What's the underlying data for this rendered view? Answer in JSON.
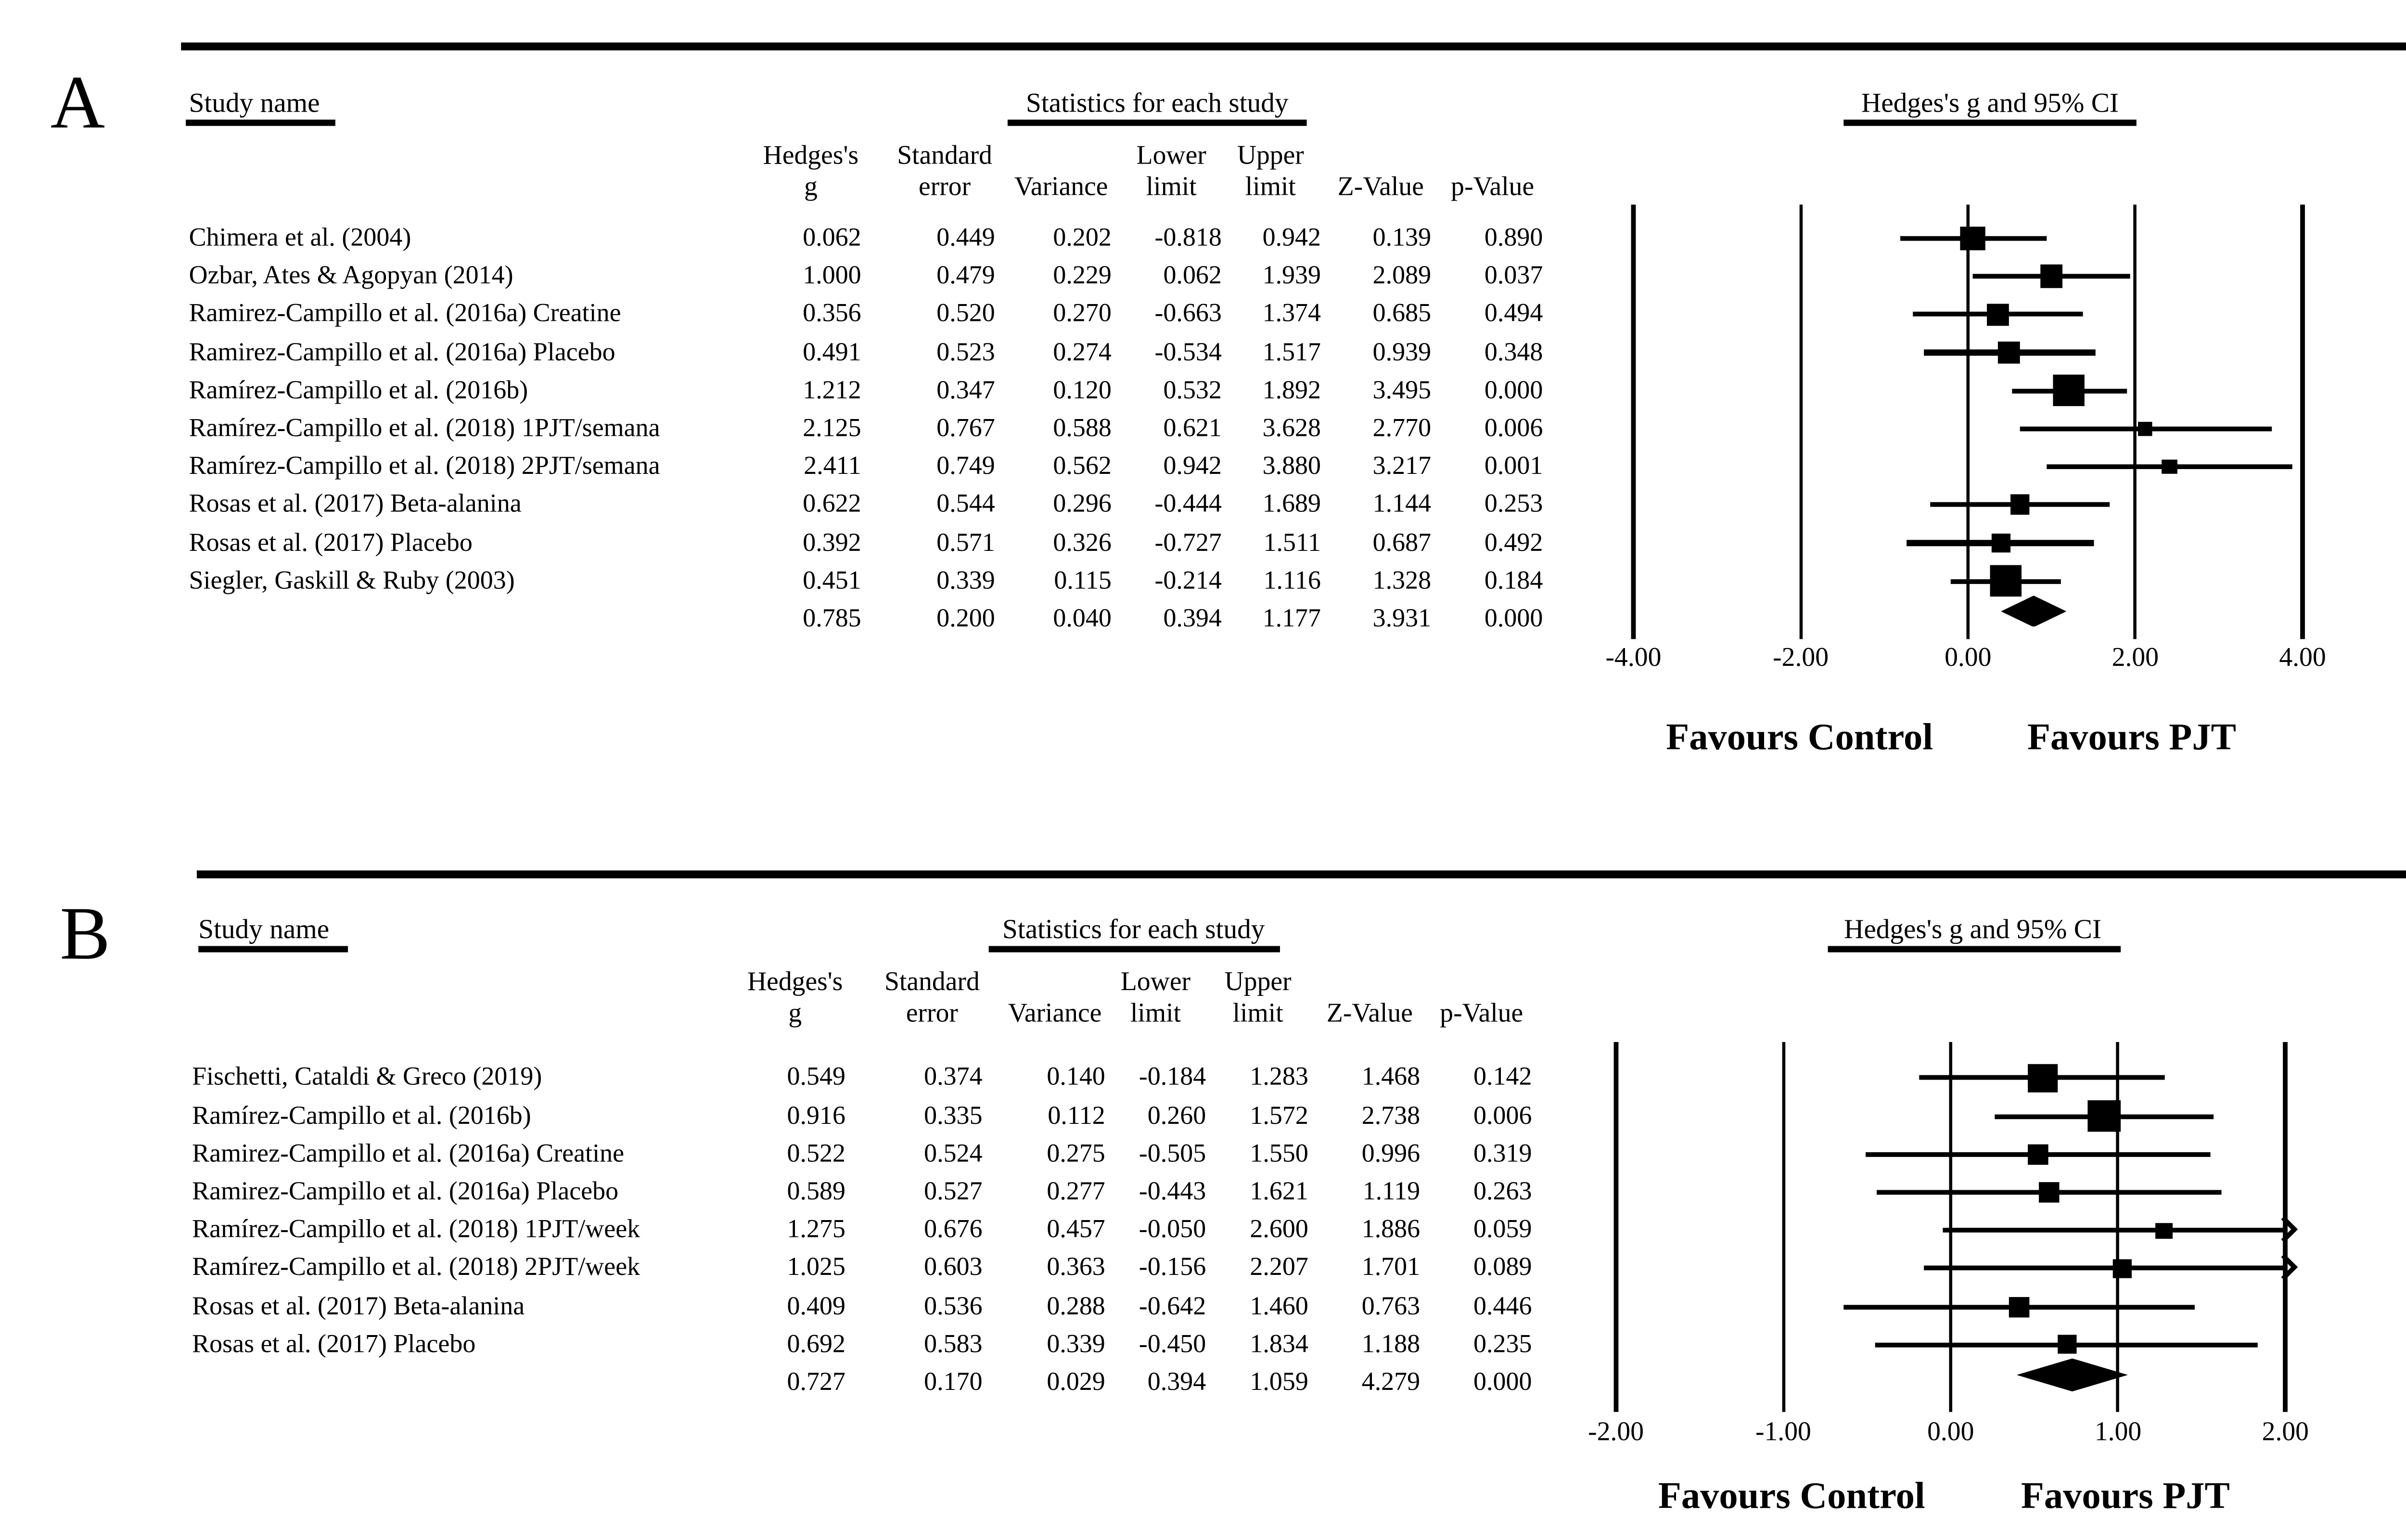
{
  "figure": {
    "panels": [
      {
        "panel_label": "A",
        "column_group_headers": {
          "study": "Study name",
          "stats": "Statistics for each study",
          "plot": "Hedges's g and 95% CI"
        },
        "stat_columns_line1": [
          "Hedges's",
          "Standard",
          "",
          "Lower",
          "Upper",
          "",
          ""
        ],
        "stat_columns_line2": [
          "g",
          "error",
          "Variance",
          "limit",
          "limit",
          "Z-Value",
          "p-Value"
        ],
        "rows": [
          {
            "study": "Chimera et al. (2004)",
            "g": "0.062",
            "se": "0.449",
            "variance": "0.202",
            "lower": "-0.818",
            "upper": "0.942",
            "z": "0.139",
            "p": "0.890"
          },
          {
            "study": "Ozbar, Ates & Agopyan (2014)",
            "g": "1.000",
            "se": "0.479",
            "variance": "0.229",
            "lower": "0.062",
            "upper": "1.939",
            "z": "2.089",
            "p": "0.037"
          },
          {
            "study": "Ramirez-Campillo et al. (2016a) Creatine",
            "g": "0.356",
            "se": "0.520",
            "variance": "0.270",
            "lower": "-0.663",
            "upper": "1.374",
            "z": "0.685",
            "p": "0.494"
          },
          {
            "study": "Ramirez-Campillo et al. (2016a) Placebo",
            "g": "0.491",
            "se": "0.523",
            "variance": "0.274",
            "lower": "-0.534",
            "upper": "1.517",
            "z": "0.939",
            "p": "0.348"
          },
          {
            "study": "Ramírez-Campillo et al. (2016b)",
            "g": "1.212",
            "se": "0.347",
            "variance": "0.120",
            "lower": "0.532",
            "upper": "1.892",
            "z": "3.495",
            "p": "0.000"
          },
          {
            "study": "Ramírez-Campillo et al. (2018) 1PJT/semana",
            "g": "2.125",
            "se": "0.767",
            "variance": "0.588",
            "lower": "0.621",
            "upper": "3.628",
            "z": "2.770",
            "p": "0.006"
          },
          {
            "study": "Ramírez-Campillo et al. (2018) 2PJT/semana",
            "g": "2.411",
            "se": "0.749",
            "variance": "0.562",
            "lower": "0.942",
            "upper": "3.880",
            "z": "3.217",
            "p": "0.001"
          },
          {
            "study": "Rosas et al. (2017) Beta-alanina",
            "g": "0.622",
            "se": "0.544",
            "variance": "0.296",
            "lower": "-0.444",
            "upper": "1.689",
            "z": "1.144",
            "p": "0.253"
          },
          {
            "study": "Rosas et al. (2017) Placebo",
            "g": "0.392",
            "se": "0.571",
            "variance": "0.326",
            "lower": "-0.727",
            "upper": "1.511",
            "z": "0.687",
            "p": "0.492"
          },
          {
            "study": "Siegler, Gaskill & Ruby (2003)",
            "g": "0.451",
            "se": "0.339",
            "variance": "0.115",
            "lower": "-0.214",
            "upper": "1.116",
            "z": "1.328",
            "p": "0.184"
          }
        ],
        "summary_row": {
          "study": "",
          "g": "0.785",
          "se": "0.200",
          "variance": "0.040",
          "lower": "0.394",
          "upper": "1.177",
          "z": "3.931",
          "p": "0.000"
        },
        "axis": {
          "min": -4,
          "max": 4,
          "tick_values": [
            -4,
            -2,
            0,
            2,
            4
          ],
          "tick_labels": [
            "-4.00",
            "-2.00",
            "0.00",
            "2.00",
            "4.00"
          ]
        },
        "favours_left": "Favours Control",
        "favours_right": "Favours PJT"
      },
      {
        "panel_label": "B",
        "column_group_headers": {
          "study": "Study name",
          "stats": "Statistics for each study",
          "plot": "Hedges's g and 95% CI"
        },
        "stat_columns_line1": [
          "Hedges's",
          "Standard",
          "",
          "Lower",
          "Upper",
          "",
          ""
        ],
        "stat_columns_line2": [
          "g",
          "error",
          "Variance",
          "limit",
          "limit",
          "Z-Value",
          "p-Value"
        ],
        "rows": [
          {
            "study": "Fischetti, Cataldi & Greco (2019)",
            "g": "0.549",
            "se": "0.374",
            "variance": "0.140",
            "lower": "-0.184",
            "upper": "1.283",
            "z": "1.468",
            "p": "0.142"
          },
          {
            "study": "Ramírez-Campillo et al. (2016b)",
            "g": "0.916",
            "se": "0.335",
            "variance": "0.112",
            "lower": "0.260",
            "upper": "1.572",
            "z": "2.738",
            "p": "0.006"
          },
          {
            "study": "Ramirez-Campillo et al. (2016a) Creatine",
            "g": "0.522",
            "se": "0.524",
            "variance": "0.275",
            "lower": "-0.505",
            "upper": "1.550",
            "z": "0.996",
            "p": "0.319"
          },
          {
            "study": "Ramirez-Campillo et al. (2016a) Placebo",
            "g": "0.589",
            "se": "0.527",
            "variance": "0.277",
            "lower": "-0.443",
            "upper": "1.621",
            "z": "1.119",
            "p": "0.263"
          },
          {
            "study": "Ramírez-Campillo et al. (2018) 1PJT/week",
            "g": "1.275",
            "se": "0.676",
            "variance": "0.457",
            "lower": "-0.050",
            "upper": "2.600",
            "z": "1.886",
            "p": "0.059"
          },
          {
            "study": "Ramírez-Campillo et al. (2018) 2PJT/week",
            "g": "1.025",
            "se": "0.603",
            "variance": "0.363",
            "lower": "-0.156",
            "upper": "2.207",
            "z": "1.701",
            "p": "0.089"
          },
          {
            "study": "Rosas et al. (2017) Beta-alanina",
            "g": "0.409",
            "se": "0.536",
            "variance": "0.288",
            "lower": "-0.642",
            "upper": "1.460",
            "z": "0.763",
            "p": "0.446"
          },
          {
            "study": "Rosas et al. (2017) Placebo",
            "g": "0.692",
            "se": "0.583",
            "variance": "0.339",
            "lower": "-0.450",
            "upper": "1.834",
            "z": "1.188",
            "p": "0.235"
          }
        ],
        "summary_row": {
          "study": "",
          "g": "0.727",
          "se": "0.170",
          "variance": "0.029",
          "lower": "0.394",
          "upper": "1.059",
          "z": "4.279",
          "p": "0.000"
        },
        "axis": {
          "min": -2,
          "max": 2,
          "tick_values": [
            -2,
            -1,
            0,
            1,
            2
          ],
          "tick_labels": [
            "-2.00",
            "-1.00",
            "0.00",
            "1.00",
            "2.00"
          ]
        },
        "favours_left": "Favours Control",
        "favours_right": "Favours PJT"
      }
    ]
  },
  "chart_data": [
    {
      "type": "forest",
      "panel": "A",
      "title": "Hedges's g and 95% CI",
      "studies": [
        "Chimera et al. (2004)",
        "Ozbar, Ates & Agopyan (2014)",
        "Ramirez-Campillo et al. (2016a) Creatine",
        "Ramirez-Campillo et al. (2016a) Placebo",
        "Ramírez-Campillo et al. (2016b)",
        "Ramírez-Campillo et al. (2018) 1PJT/semana",
        "Ramírez-Campillo et al. (2018) 2PJT/semana",
        "Rosas et al. (2017) Beta-alanina",
        "Rosas et al. (2017) Placebo",
        "Siegler, Gaskill & Ruby (2003)"
      ],
      "hedges_g": [
        0.062,
        1.0,
        0.356,
        0.491,
        1.212,
        2.125,
        2.411,
        0.622,
        0.392,
        0.451
      ],
      "standard_error": [
        0.449,
        0.479,
        0.52,
        0.523,
        0.347,
        0.767,
        0.749,
        0.544,
        0.571,
        0.339
      ],
      "variance": [
        0.202,
        0.229,
        0.27,
        0.274,
        0.12,
        0.588,
        0.562,
        0.296,
        0.326,
        0.115
      ],
      "lower_limit": [
        -0.818,
        0.062,
        -0.663,
        -0.534,
        0.532,
        0.621,
        0.942,
        -0.444,
        -0.727,
        -0.214
      ],
      "upper_limit": [
        0.942,
        1.939,
        1.374,
        1.517,
        1.892,
        3.628,
        3.88,
        1.689,
        1.511,
        1.116
      ],
      "z_value": [
        0.139,
        2.089,
        0.685,
        0.939,
        3.495,
        2.77,
        3.217,
        1.144,
        0.687,
        1.328
      ],
      "p_value": [
        0.89,
        0.037,
        0.494,
        0.348,
        0.0,
        0.006,
        0.001,
        0.253,
        0.492,
        0.184
      ],
      "summary": {
        "g": 0.785,
        "se": 0.2,
        "variance": 0.04,
        "lower": 0.394,
        "upper": 1.177,
        "z": 3.931,
        "p": 0.0
      },
      "xlim": [
        -4,
        4
      ],
      "x_ticks": [
        -4,
        -2,
        0,
        2,
        4
      ],
      "annotations": [
        "Favours Control",
        "Favours PJT"
      ],
      "grid": true,
      "marker": "square",
      "summary_marker": "diamond"
    },
    {
      "type": "forest",
      "panel": "B",
      "title": "Hedges's g and 95% CI",
      "studies": [
        "Fischetti, Cataldi & Greco (2019)",
        "Ramírez-Campillo et al. (2016b)",
        "Ramirez-Campillo et al. (2016a) Creatine",
        "Ramirez-Campillo et al. (2016a) Placebo",
        "Ramírez-Campillo et al. (2018) 1PJT/week",
        "Ramírez-Campillo et al. (2018) 2PJT/week",
        "Rosas et al. (2017) Beta-alanina",
        "Rosas et al. (2017) Placebo"
      ],
      "hedges_g": [
        0.549,
        0.916,
        0.522,
        0.589,
        1.275,
        1.025,
        0.409,
        0.692
      ],
      "standard_error": [
        0.374,
        0.335,
        0.524,
        0.527,
        0.676,
        0.603,
        0.536,
        0.583
      ],
      "variance": [
        0.14,
        0.112,
        0.275,
        0.277,
        0.457,
        0.363,
        0.288,
        0.339
      ],
      "lower_limit": [
        -0.184,
        0.26,
        -0.505,
        -0.443,
        -0.05,
        -0.156,
        -0.642,
        -0.45
      ],
      "upper_limit": [
        1.283,
        1.572,
        1.55,
        1.621,
        2.6,
        2.207,
        1.46,
        1.834
      ],
      "z_value": [
        1.468,
        2.738,
        0.996,
        1.119,
        1.886,
        1.701,
        0.763,
        1.188
      ],
      "p_value": [
        0.142,
        0.006,
        0.319,
        0.263,
        0.059,
        0.089,
        0.446,
        0.235
      ],
      "summary": {
        "g": 0.727,
        "se": 0.17,
        "variance": 0.029,
        "lower": 0.394,
        "upper": 1.059,
        "z": 4.279,
        "p": 0.0
      },
      "xlim": [
        -2,
        2
      ],
      "x_ticks": [
        -2,
        -1,
        0,
        1,
        2
      ],
      "annotations": [
        "Favours Control",
        "Favours PJT"
      ],
      "grid": true,
      "marker": "square",
      "summary_marker": "diamond",
      "clipped_upper_arrows": [
        4,
        5
      ]
    }
  ]
}
